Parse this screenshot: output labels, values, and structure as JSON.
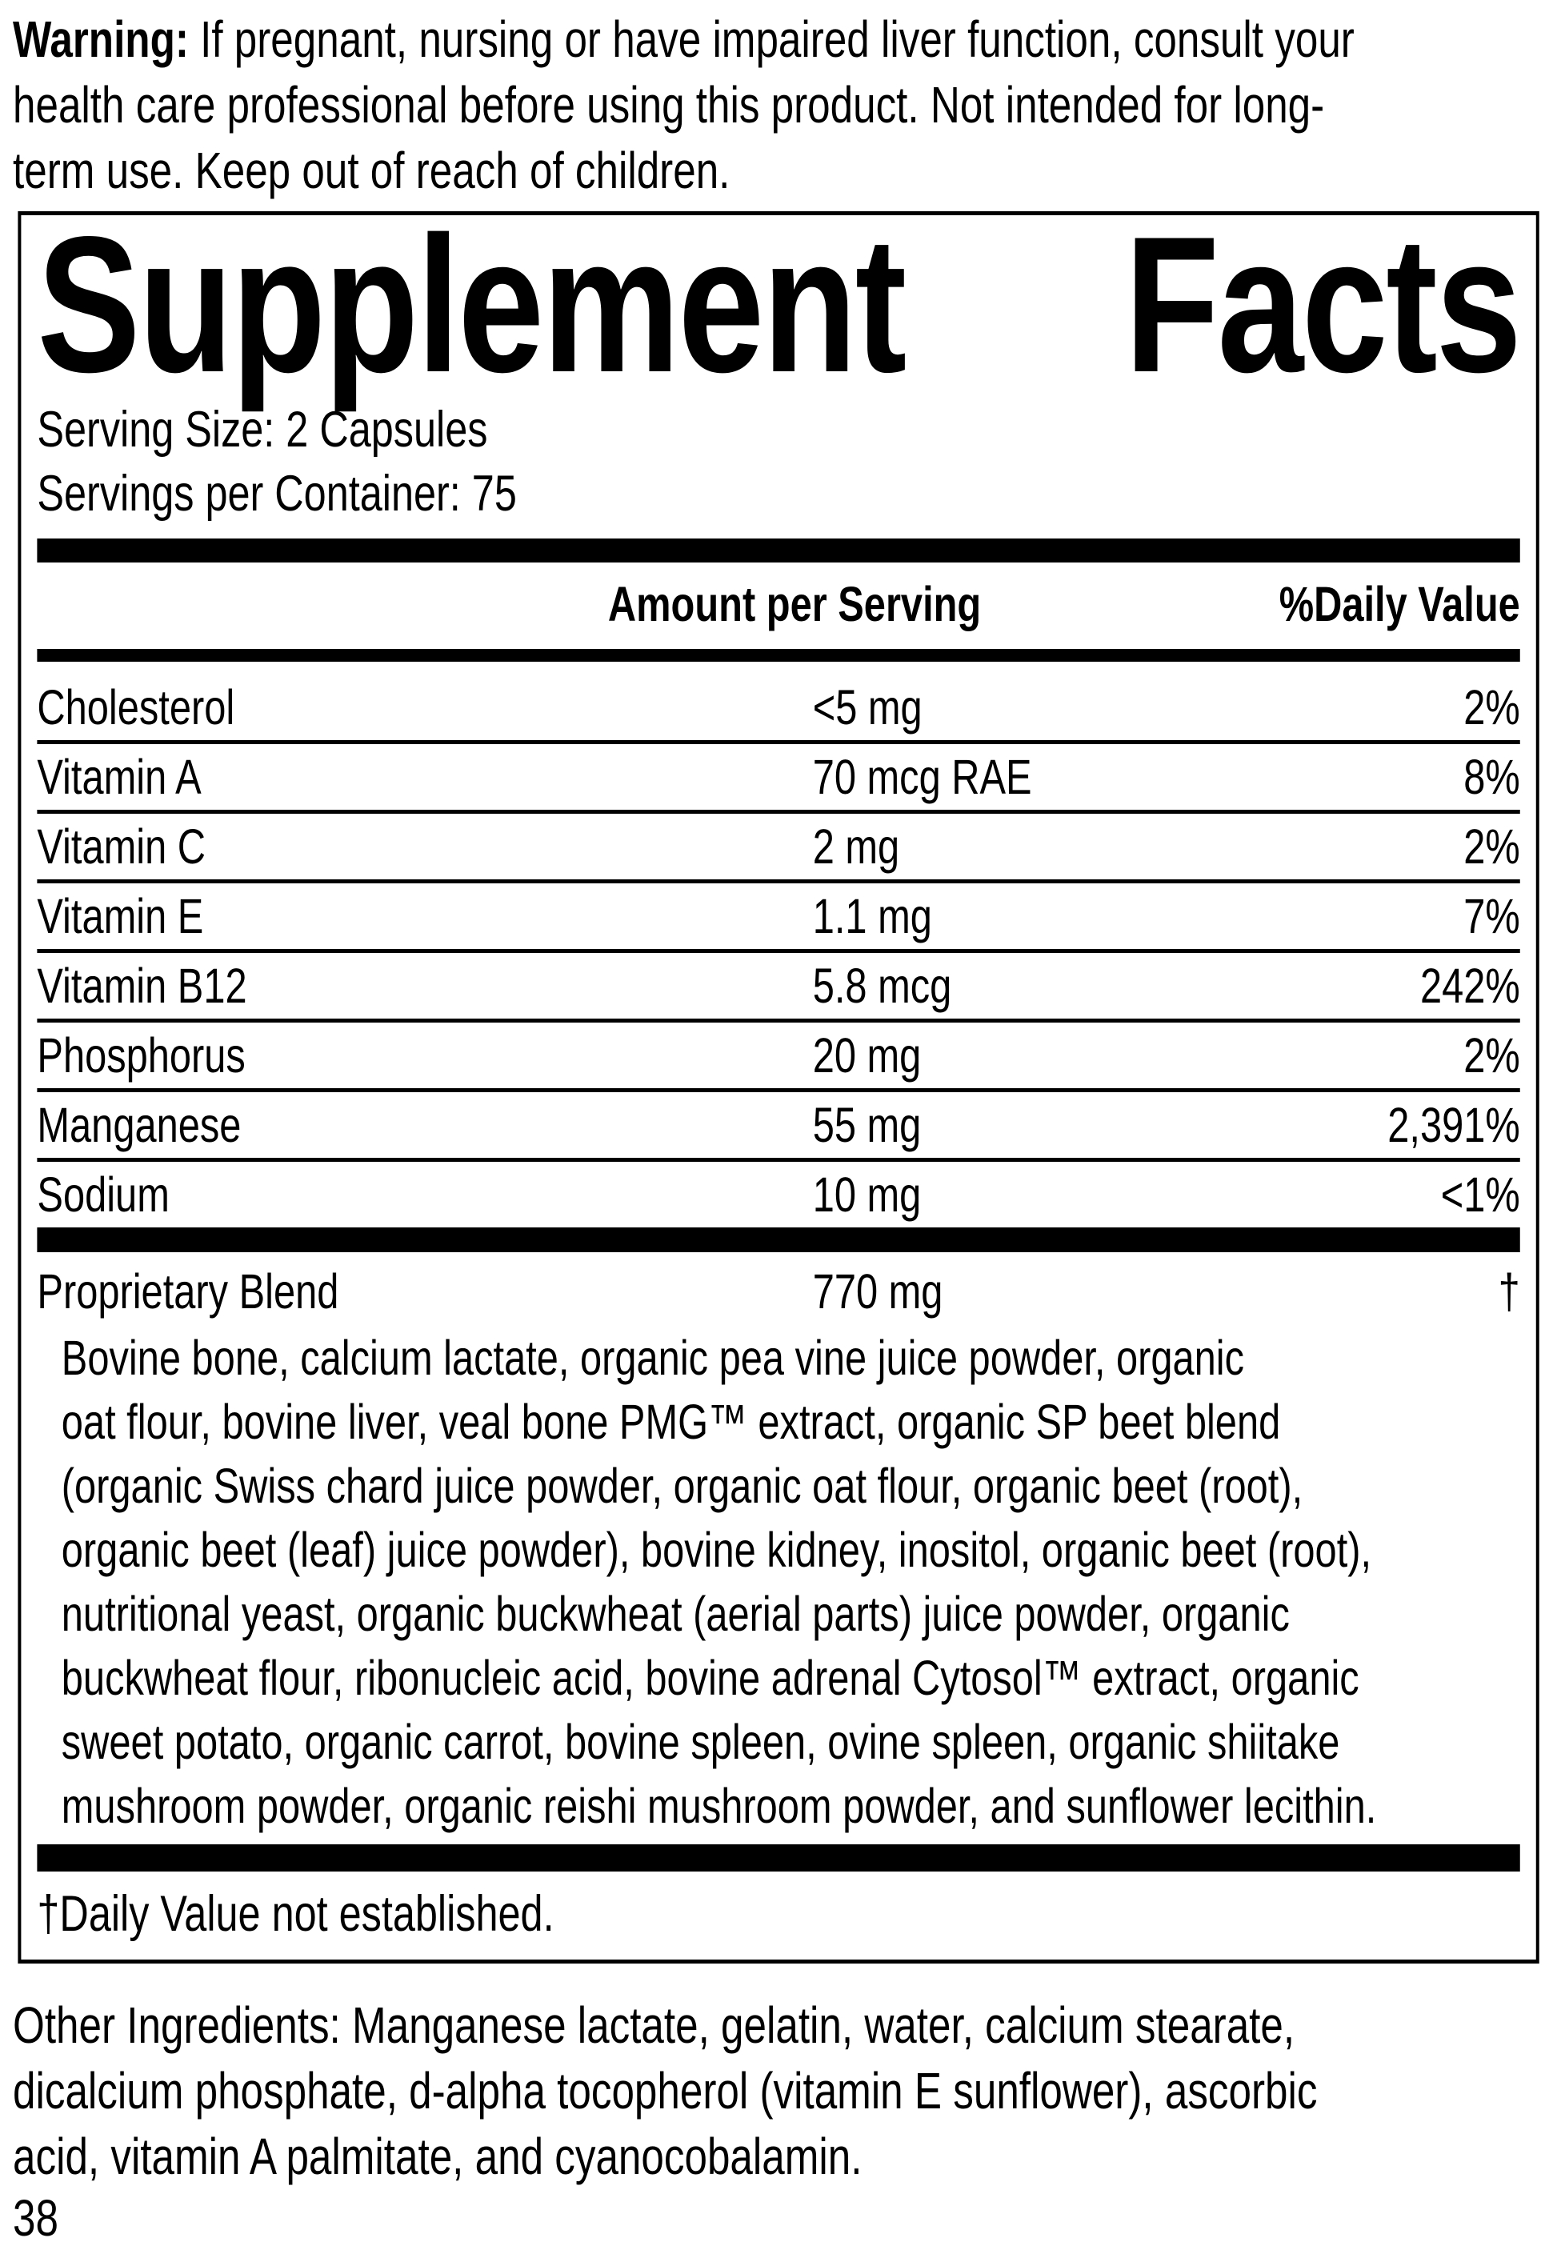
{
  "colors": {
    "text": "#000000",
    "background": "#ffffff",
    "rule": "#000000"
  },
  "warning": {
    "label": "Warning:",
    "text": " If pregnant, nursing or have impaired liver function, consult your\nhealth care professional before using this product. Not intended for long-\nterm use. Keep out of reach of children."
  },
  "supplement_facts": {
    "title_left": "Supplement",
    "title_right": "Facts",
    "serving_size": "Serving Size: 2 Capsules",
    "servings_per_container": "Servings per Container: 75",
    "columns": {
      "amount": "Amount per Serving",
      "daily_value": "%Daily Value"
    },
    "rows": [
      {
        "name": "Cholesterol",
        "amount": "<5 mg",
        "daily_value": "2%"
      },
      {
        "name": "Vitamin A",
        "amount": "70 mcg RAE",
        "daily_value": "8%"
      },
      {
        "name": "Vitamin C",
        "amount": "2 mg",
        "daily_value": "2%"
      },
      {
        "name": "Vitamin E",
        "amount": "1.1 mg",
        "daily_value": "7%"
      },
      {
        "name": "Vitamin B12",
        "amount": "5.8 mcg",
        "daily_value": "242%"
      },
      {
        "name": "Phosphorus",
        "amount": "20 mg",
        "daily_value": "2%"
      },
      {
        "name": "Manganese",
        "amount": "55 mg",
        "daily_value": "2,391%"
      },
      {
        "name": "Sodium",
        "amount": "10 mg",
        "daily_value": "<1%"
      }
    ],
    "proprietary_blend": {
      "name": "Proprietary Blend",
      "amount": "770 mg",
      "daily_value": "†",
      "description": "Bovine bone, calcium lactate, organic pea vine juice powder, organic\noat flour, bovine liver, veal bone PMG™ extract, organic SP beet blend\n(organic Swiss chard juice powder, organic oat flour, organic beet (root),\norganic beet (leaf) juice powder), bovine kidney, inositol, organic beet (root),\nnutritional yeast, organic buckwheat (aerial parts) juice powder, organic\nbuckwheat flour, ribonucleic acid, bovine adrenal Cytosol™ extract, organic\nsweet potato, organic carrot, bovine spleen, ovine spleen, organic shiitake\nmushroom powder, organic reishi mushroom powder, and sunflower lecithin."
    },
    "footnote": "†Daily Value not established."
  },
  "other_ingredients": "Other Ingredients: Manganese lactate, gelatin, water, calcium stearate,\ndicalcium phosphate, d-alpha tocopherol (vitamin E sunflower), ascorbic\nacid, vitamin A palmitate, and cyanocobalamin.",
  "page_number": "38"
}
